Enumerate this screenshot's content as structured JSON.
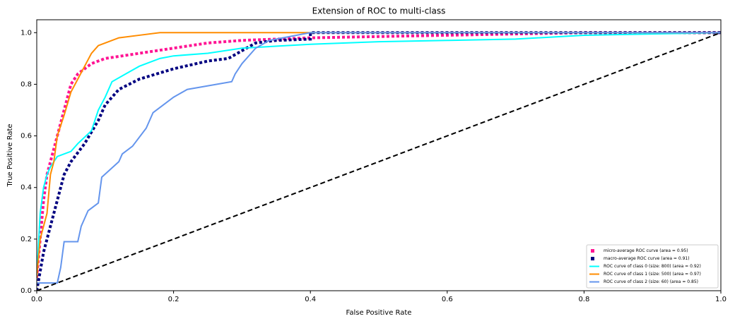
{
  "chart_data": {
    "type": "line",
    "title": "Extension of ROC to multi-class",
    "x_label": "False Positive Rate",
    "y_label": "True Positive Rate",
    "xlim": [
      0,
      1
    ],
    "ylim": [
      0,
      1.05
    ],
    "xticks": [
      {
        "value": 0,
        "label": "0.0"
      },
      0.2,
      0.4,
      0.6,
      0.8,
      {
        "value": 1,
        "label": "1.0"
      }
    ],
    "yticks": [
      {
        "value": 0,
        "label": "0.0"
      },
      0.2,
      0.4,
      0.6,
      0.8,
      {
        "value": 1,
        "label": "1.0"
      }
    ],
    "grid": false,
    "legend": "lower right",
    "series": [
      {
        "name": "micro-average ROC curve (area = 0.95)",
        "color": "#ff1493",
        "style": "dotted",
        "x": [
          0,
          0.005,
          0.01,
          0.015,
          0.02,
          0.03,
          0.04,
          0.05,
          0.06,
          0.08,
          0.1,
          0.15,
          0.2,
          0.25,
          0.3,
          0.4,
          0.6,
          0.8,
          1
        ],
        "values": [
          0.05,
          0.2,
          0.35,
          0.45,
          0.5,
          0.6,
          0.7,
          0.8,
          0.84,
          0.88,
          0.9,
          0.92,
          0.94,
          0.96,
          0.97,
          0.98,
          0.99,
          1,
          1
        ]
      },
      {
        "name": "macro-average ROC curve (area = 0.91)",
        "color": "#000080",
        "style": "dotted",
        "x": [
          0,
          0.01,
          0.02,
          0.03,
          0.04,
          0.05,
          0.07,
          0.09,
          0.1,
          0.12,
          0.15,
          0.2,
          0.25,
          0.28,
          0.3,
          0.32,
          0.35,
          0.4,
          0.4,
          1
        ],
        "values": [
          0,
          0.15,
          0.25,
          0.35,
          0.45,
          0.5,
          0.57,
          0.66,
          0.72,
          0.78,
          0.82,
          0.86,
          0.89,
          0.9,
          0.93,
          0.96,
          0.97,
          0.975,
          1,
          1
        ]
      },
      {
        "name": "ROC curve of class 0 (size: 800) (area = 0.92)",
        "color": "#00ffff",
        "style": "solid",
        "x": [
          0,
          0.005,
          0.01,
          0.015,
          0.02,
          0.03,
          0.05,
          0.06,
          0.08,
          0.09,
          0.1,
          0.11,
          0.13,
          0.15,
          0.18,
          0.2,
          0.25,
          0.3,
          0.4,
          0.5,
          0.6,
          0.7,
          0.8,
          1
        ],
        "values": [
          0.05,
          0.3,
          0.4,
          0.45,
          0.48,
          0.52,
          0.54,
          0.57,
          0.62,
          0.7,
          0.75,
          0.81,
          0.84,
          0.87,
          0.9,
          0.91,
          0.92,
          0.94,
          0.955,
          0.965,
          0.97,
          0.975,
          0.99,
          1
        ]
      },
      {
        "name": "ROC curve of class 1 (size: 500) (area = 0.97)",
        "color": "#ff8c00",
        "style": "solid",
        "x": [
          0,
          0.005,
          0.015,
          0.02,
          0.025,
          0.03,
          0.04,
          0.05,
          0.06,
          0.07,
          0.08,
          0.09,
          0.1,
          0.12,
          0.15,
          0.18,
          1
        ],
        "values": [
          0.05,
          0.2,
          0.3,
          0.45,
          0.5,
          0.6,
          0.68,
          0.77,
          0.82,
          0.87,
          0.92,
          0.95,
          0.96,
          0.98,
          0.99,
          1,
          1
        ]
      },
      {
        "name": "ROC curve of class 2 (size: 60) (area = 0.85)",
        "color": "#6495ed",
        "style": "solid",
        "x": [
          0,
          0.03,
          0.035,
          0.04,
          0.06,
          0.065,
          0.07,
          0.075,
          0.09,
          0.095,
          0.12,
          0.125,
          0.14,
          0.16,
          0.17,
          0.185,
          0.2,
          0.22,
          0.285,
          0.29,
          0.3,
          0.32,
          0.34,
          0.4,
          1
        ],
        "values": [
          0.03,
          0.03,
          0.09,
          0.19,
          0.19,
          0.25,
          0.28,
          0.31,
          0.34,
          0.44,
          0.5,
          0.53,
          0.56,
          0.63,
          0.69,
          0.72,
          0.75,
          0.78,
          0.81,
          0.84,
          0.88,
          0.94,
          0.97,
          1,
          1
        ]
      },
      {
        "color": "#000000",
        "style": "dashed",
        "x": [
          0,
          1
        ],
        "values": [
          0,
          1
        ]
      }
    ]
  }
}
